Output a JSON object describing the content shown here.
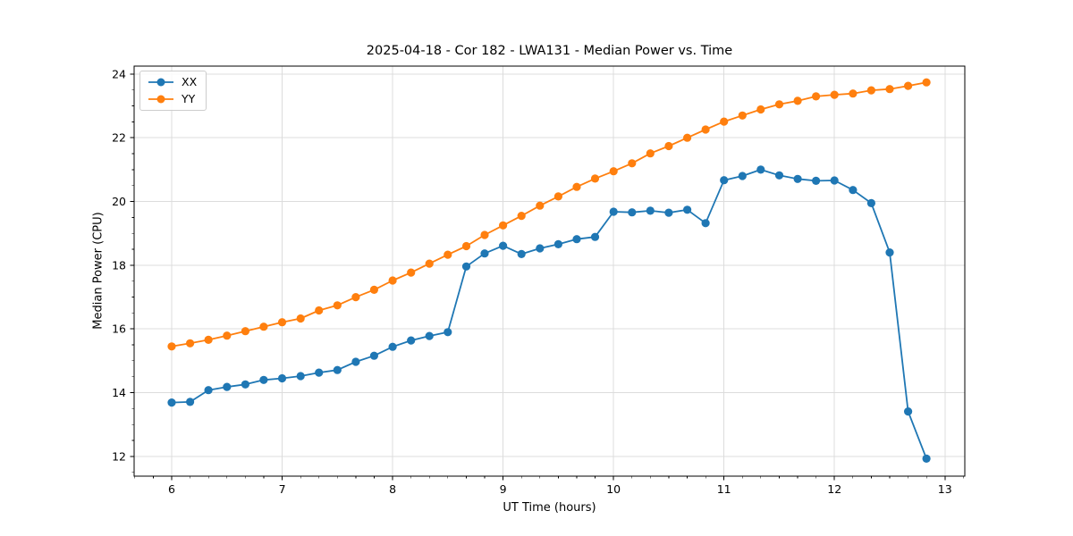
{
  "chart_data": {
    "type": "line",
    "title": "2025-04-18 - Cor 182 - LWA131 - Median Power vs. Time",
    "xlabel": "UT Time (hours)",
    "ylabel": "Median Power (CPU)",
    "xlim": [
      5.66,
      13.18
    ],
    "ylim": [
      11.38,
      24.25
    ],
    "xticks": {
      "values": [
        6,
        7,
        8,
        9,
        10,
        11,
        12,
        13
      ],
      "labels": [
        "6",
        "7",
        "8",
        "9",
        "10",
        "11",
        "12",
        "13"
      ]
    },
    "yticks": {
      "values": [
        12,
        14,
        16,
        18,
        20,
        22,
        24
      ],
      "labels": [
        "12",
        "14",
        "16",
        "18",
        "20",
        "22",
        "24"
      ]
    },
    "minor_tick_step": {
      "x": 0.16667,
      "y": 0.5
    },
    "grid": "major",
    "grid_color": "#dcdcdc",
    "axis_color": "#000000",
    "legend_position": "upper-left",
    "x": [
      6.0,
      6.167,
      6.333,
      6.5,
      6.667,
      6.833,
      7.0,
      7.167,
      7.333,
      7.5,
      7.667,
      7.833,
      8.0,
      8.167,
      8.333,
      8.5,
      8.667,
      8.833,
      9.0,
      9.167,
      9.333,
      9.5,
      9.667,
      9.833,
      10.0,
      10.167,
      10.333,
      10.5,
      10.667,
      10.833,
      11.0,
      11.167,
      11.333,
      11.5,
      11.667,
      11.833,
      12.0,
      12.167,
      12.333,
      12.5,
      12.667,
      12.833
    ],
    "series": [
      {
        "name": "XX",
        "color": "#1f77b4",
        "values": [
          13.69,
          13.71,
          14.08,
          14.18,
          14.26,
          14.4,
          14.45,
          14.52,
          14.63,
          14.71,
          14.97,
          15.16,
          15.44,
          15.64,
          15.78,
          15.9,
          17.96,
          18.37,
          18.61,
          18.35,
          18.53,
          18.66,
          18.82,
          18.89,
          19.68,
          19.66,
          19.71,
          19.65,
          19.74,
          19.32,
          20.67,
          20.8,
          21.0,
          20.82,
          20.71,
          20.65,
          20.66,
          20.36,
          19.95,
          18.4,
          13.41,
          11.93
        ]
      },
      {
        "name": "YY",
        "color": "#ff7f0e",
        "values": [
          15.45,
          15.55,
          15.66,
          15.79,
          15.93,
          16.07,
          16.21,
          16.33,
          16.58,
          16.74,
          17.0,
          17.23,
          17.52,
          17.77,
          18.05,
          18.33,
          18.6,
          18.95,
          19.25,
          19.55,
          19.87,
          20.16,
          20.46,
          20.72,
          20.95,
          21.2,
          21.51,
          21.74,
          22.0,
          22.26,
          22.51,
          22.7,
          22.89,
          23.05,
          23.16,
          23.3,
          23.35,
          23.39,
          23.49,
          23.53,
          23.63,
          23.74
        ]
      }
    ]
  }
}
